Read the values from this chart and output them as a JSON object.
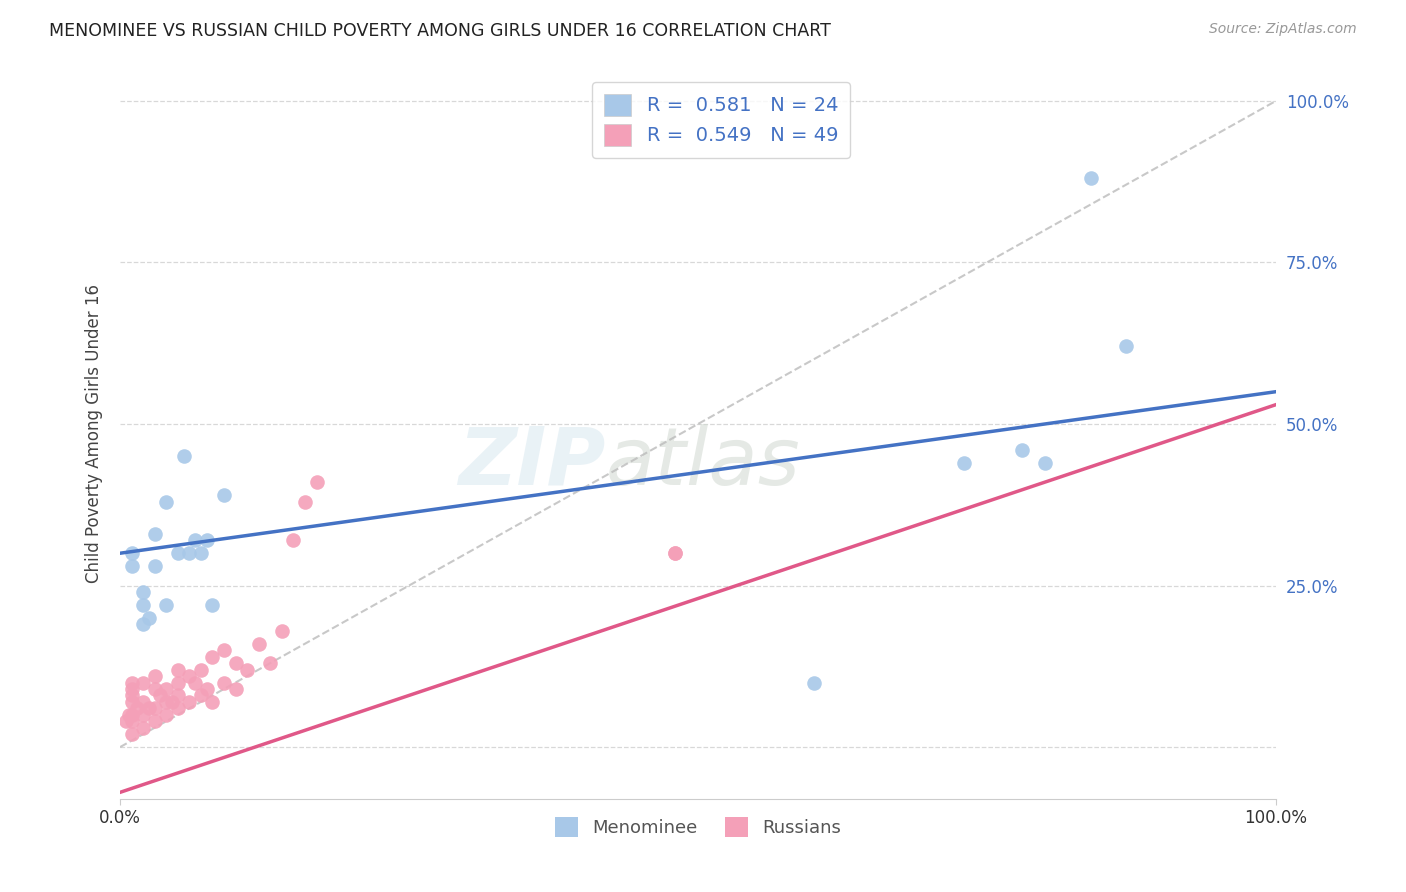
{
  "title": "MENOMINEE VS RUSSIAN CHILD POVERTY AMONG GIRLS UNDER 16 CORRELATION CHART",
  "source": "Source: ZipAtlas.com",
  "ylabel": "Child Poverty Among Girls Under 16",
  "menominee_R": "0.581",
  "menominee_N": "24",
  "russians_R": "0.549",
  "russians_N": "49",
  "menominee_color": "#a8c8e8",
  "russians_color": "#f4a0b8",
  "trendline_menominee_color": "#4472c4",
  "trendline_russians_color": "#e05888",
  "diagonal_color": "#bbbbbb",
  "watermark_line1": "ZIP",
  "watermark_line2": "atlas",
  "menominee_x": [
    0.01,
    0.01,
    0.02,
    0.02,
    0.02,
    0.025,
    0.03,
    0.03,
    0.04,
    0.04,
    0.05,
    0.055,
    0.06,
    0.065,
    0.07,
    0.075,
    0.08,
    0.09,
    0.6,
    0.73,
    0.78,
    0.8,
    0.84,
    0.87
  ],
  "menominee_y": [
    0.28,
    0.3,
    0.19,
    0.22,
    0.24,
    0.2,
    0.28,
    0.33,
    0.22,
    0.38,
    0.3,
    0.45,
    0.3,
    0.32,
    0.3,
    0.32,
    0.22,
    0.39,
    0.1,
    0.44,
    0.46,
    0.44,
    0.88,
    0.62
  ],
  "russians_x": [
    0.005,
    0.008,
    0.01,
    0.01,
    0.01,
    0.01,
    0.01,
    0.01,
    0.01,
    0.015,
    0.02,
    0.02,
    0.02,
    0.02,
    0.025,
    0.03,
    0.03,
    0.03,
    0.03,
    0.035,
    0.04,
    0.04,
    0.04,
    0.045,
    0.05,
    0.05,
    0.05,
    0.05,
    0.06,
    0.06,
    0.065,
    0.07,
    0.07,
    0.075,
    0.08,
    0.08,
    0.09,
    0.09,
    0.1,
    0.1,
    0.11,
    0.12,
    0.13,
    0.14,
    0.15,
    0.16,
    0.17,
    0.48,
    0.48
  ],
  "russians_y": [
    0.04,
    0.05,
    0.02,
    0.04,
    0.05,
    0.07,
    0.08,
    0.09,
    0.1,
    0.06,
    0.03,
    0.05,
    0.07,
    0.1,
    0.06,
    0.04,
    0.06,
    0.09,
    0.11,
    0.08,
    0.05,
    0.07,
    0.09,
    0.07,
    0.06,
    0.08,
    0.1,
    0.12,
    0.07,
    0.11,
    0.1,
    0.08,
    0.12,
    0.09,
    0.07,
    0.14,
    0.1,
    0.15,
    0.09,
    0.13,
    0.12,
    0.16,
    0.13,
    0.18,
    0.32,
    0.38,
    0.41,
    0.3,
    0.3
  ],
  "xlim": [
    0.0,
    1.0
  ],
  "ylim": [
    -0.08,
    1.05
  ],
  "yticks": [
    0.0,
    0.25,
    0.5,
    0.75,
    1.0
  ],
  "ytick_labels": [
    "",
    "25.0%",
    "50.0%",
    "75.0%",
    "100.0%"
  ],
  "xticks": [
    0.0,
    1.0
  ],
  "xtick_labels": [
    "0.0%",
    "100.0%"
  ],
  "background_color": "#ffffff",
  "grid_color": "#d8d8d8",
  "tick_color": "#4472c4"
}
